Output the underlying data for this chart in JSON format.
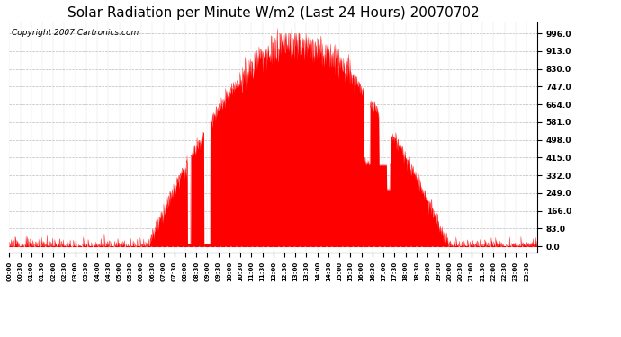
{
  "title": "Solar Radiation per Minute W/m2 (Last 24 Hours) 20070702",
  "copyright_text": "Copyright 2007 Cartronics.com",
  "fill_color": "#FF0000",
  "line_color": "#FF0000",
  "dashed_line_color": "#FF0000",
  "background_color": "#FFFFFF",
  "grid_color": "#AAAAAA",
  "ytick_labels": [
    0.0,
    83.0,
    166.0,
    249.0,
    332.0,
    415.0,
    498.0,
    581.0,
    664.0,
    747.0,
    830.0,
    913.0,
    996.0
  ],
  "ymax": 1050,
  "ymin": -30,
  "title_fontsize": 11,
  "copyright_fontsize": 6.5
}
